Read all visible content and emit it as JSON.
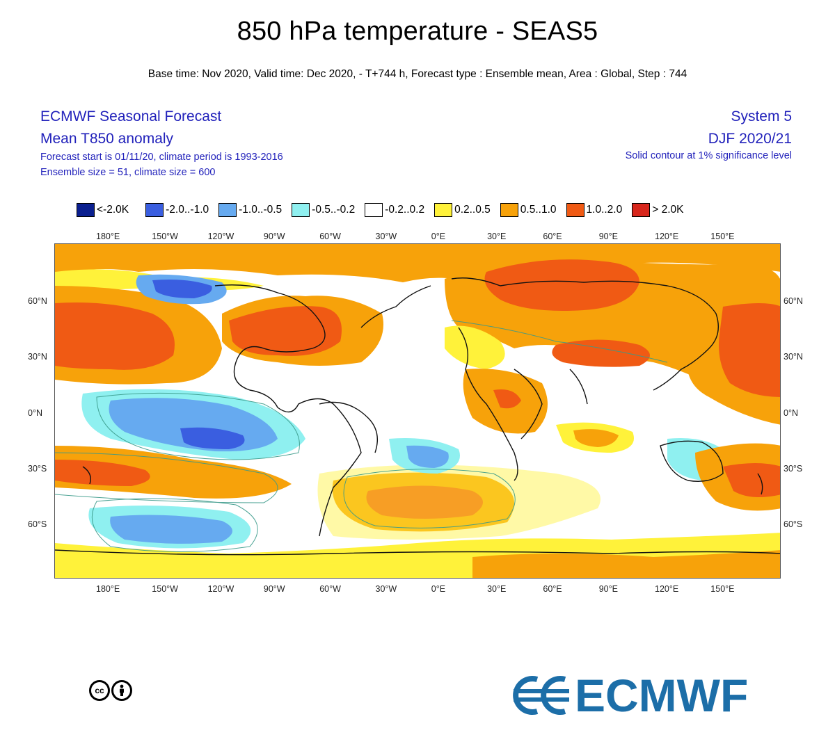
{
  "header": {
    "title": "850 hPa temperature - SEAS5",
    "subtitle": "Base time: Nov 2020, Valid time: Dec 2020, - T+744 h, Forecast type : Ensemble mean, Area : Global, Step : 744"
  },
  "info_left": {
    "line1": "ECMWF Seasonal Forecast",
    "line2": "Mean T850 anomaly",
    "line3": "Forecast start is 01/11/20, climate period is 1993-2016",
    "line4": "Ensemble size = 51, climate size = 600"
  },
  "info_right": {
    "line1": "System 5",
    "line2": "DJF 2020/21",
    "line3": "Solid contour at 1% significance level"
  },
  "legend": [
    {
      "label": "<-2.0K",
      "color": "#0a1f8f"
    },
    {
      "label": "-2.0..-1.0",
      "color": "#3a5ee0"
    },
    {
      "label": "-1.0..-0.5",
      "color": "#66aaf0"
    },
    {
      "label": "-0.5..-0.2",
      "color": "#8ff0f0"
    },
    {
      "label": "-0.2..0.2",
      "color": "#ffffff"
    },
    {
      "label": "0.2..0.5",
      "color": "#fff23a"
    },
    {
      "label": "0.5..1.0",
      "color": "#f7a20a"
    },
    {
      "label": "1.0..2.0",
      "color": "#f05a14"
    },
    {
      "label": "> 2.0K",
      "color": "#d8261c"
    }
  ],
  "lon_labels": [
    "180°E",
    "150°W",
    "120°W",
    "90°W",
    "60°W",
    "30°W",
    "0°E",
    "30°E",
    "60°E",
    "90°E",
    "120°E",
    "150°E"
  ],
  "lat_labels": [
    "60°N",
    "30°N",
    "0°N",
    "30°S",
    "60°S"
  ],
  "footer": {
    "license": "cc",
    "logo_text": "ECMWF"
  }
}
